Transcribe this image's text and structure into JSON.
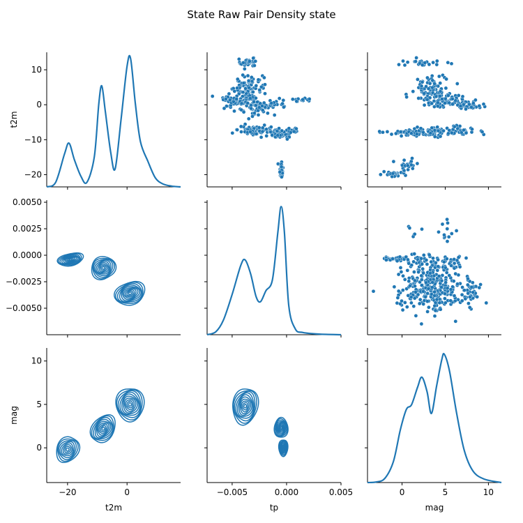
{
  "chart_data": {
    "type": "pairplot",
    "title": "State Raw Pair Density state",
    "variables": [
      "t2m",
      "tp",
      "mag"
    ],
    "diag": "kde",
    "upper": "scatter",
    "lower": "kde_contour",
    "color": "#1f77b4",
    "axes": {
      "t2m": {
        "range": [
          -27,
          18
        ],
        "ticks": [
          -20,
          0
        ],
        "row_range": [
          -23.5,
          15
        ],
        "row_ticks": [
          -20,
          -10,
          0,
          10
        ]
      },
      "tp": {
        "range": [
          -0.0073,
          0.005
        ],
        "ticks": [
          -0.005,
          0.0,
          0.005
        ],
        "tick_labels": [
          "−0.005",
          "0.000",
          "0.005"
        ],
        "row_range": [
          -0.0075,
          0.0052
        ],
        "row_ticks": [
          -0.005,
          -0.0025,
          0.0,
          0.0025,
          0.005
        ],
        "row_tick_labels": [
          "−0.0050",
          "−0.0025",
          "0.0000",
          "0.0025",
          "0.0050"
        ]
      },
      "mag": {
        "range": [
          -4,
          11.5
        ],
        "ticks": [
          0,
          5,
          10
        ],
        "row_range": [
          -4,
          11.5
        ],
        "row_ticks": [
          0,
          5,
          10
        ]
      }
    },
    "diag_kde": {
      "t2m": [
        {
          "x": -27.0,
          "d": 0.0
        },
        {
          "x": -24.0,
          "d": 0.003
        },
        {
          "x": -21.0,
          "d": 0.022
        },
        {
          "x": -19.5,
          "d": 0.029
        },
        {
          "x": -17.7,
          "d": 0.018
        },
        {
          "x": -15.5,
          "d": 0.007
        },
        {
          "x": -13.5,
          "d": 0.003
        },
        {
          "x": -11.0,
          "d": 0.02
        },
        {
          "x": -9.5,
          "d": 0.055
        },
        {
          "x": -8.5,
          "d": 0.067
        },
        {
          "x": -7.3,
          "d": 0.05
        },
        {
          "x": -5.5,
          "d": 0.023
        },
        {
          "x": -4.0,
          "d": 0.012
        },
        {
          "x": -2.0,
          "d": 0.045
        },
        {
          "x": 0.0,
          "d": 0.08
        },
        {
          "x": 1.2,
          "d": 0.085
        },
        {
          "x": 2.8,
          "d": 0.055
        },
        {
          "x": 4.5,
          "d": 0.03
        },
        {
          "x": 7.0,
          "d": 0.017
        },
        {
          "x": 9.5,
          "d": 0.006
        },
        {
          "x": 12.0,
          "d": 0.002
        },
        {
          "x": 15.0,
          "d": 0.0005
        },
        {
          "x": 18.0,
          "d": 0.0
        }
      ],
      "tp": [
        {
          "x": -0.0073,
          "d": 0.0
        },
        {
          "x": -0.0065,
          "d": 0.004
        },
        {
          "x": -0.0058,
          "d": 0.02
        },
        {
          "x": -0.005,
          "d": 0.055
        },
        {
          "x": -0.0042,
          "d": 0.095
        },
        {
          "x": -0.0038,
          "d": 0.102
        },
        {
          "x": -0.0033,
          "d": 0.083
        },
        {
          "x": -0.0028,
          "d": 0.052
        },
        {
          "x": -0.0024,
          "d": 0.045
        },
        {
          "x": -0.0019,
          "d": 0.06
        },
        {
          "x": -0.0013,
          "d": 0.075
        },
        {
          "x": -0.0008,
          "d": 0.14
        },
        {
          "x": -0.0005,
          "d": 0.175
        },
        {
          "x": -0.0002,
          "d": 0.14
        },
        {
          "x": 0.0002,
          "d": 0.04
        },
        {
          "x": 0.0008,
          "d": 0.008
        },
        {
          "x": 0.0015,
          "d": 0.003
        },
        {
          "x": 0.003,
          "d": 0.0008
        },
        {
          "x": 0.005,
          "d": 0.0
        }
      ],
      "mag": [
        {
          "x": -4.0,
          "d": 0.0
        },
        {
          "x": -3.0,
          "d": 0.001
        },
        {
          "x": -2.0,
          "d": 0.007
        },
        {
          "x": -1.0,
          "d": 0.036
        },
        {
          "x": -0.2,
          "d": 0.09
        },
        {
          "x": 0.5,
          "d": 0.125
        },
        {
          "x": 1.1,
          "d": 0.133
        },
        {
          "x": 1.8,
          "d": 0.163
        },
        {
          "x": 2.3,
          "d": 0.18
        },
        {
          "x": 2.9,
          "d": 0.155
        },
        {
          "x": 3.4,
          "d": 0.118
        },
        {
          "x": 4.0,
          "d": 0.165
        },
        {
          "x": 4.6,
          "d": 0.21
        },
        {
          "x": 4.9,
          "d": 0.219
        },
        {
          "x": 5.5,
          "d": 0.19
        },
        {
          "x": 6.3,
          "d": 0.12
        },
        {
          "x": 7.2,
          "d": 0.055
        },
        {
          "x": 8.2,
          "d": 0.02
        },
        {
          "x": 9.5,
          "d": 0.006
        },
        {
          "x": 11.5,
          "d": 0.0
        }
      ]
    },
    "scatter_clusters": {
      "tp_vs_t2m": [
        {
          "cx": -0.0035,
          "cy": 12.2,
          "sx": 0.0005,
          "sy": 0.6,
          "n": 25
        },
        {
          "cx": -0.0035,
          "cy": 4.5,
          "sx": 0.0007,
          "sy": 2.0,
          "n": 90
        },
        {
          "cx": -0.0048,
          "cy": 1.0,
          "sx": 0.0009,
          "sy": 0.9,
          "n": 50
        },
        {
          "cx": -0.0027,
          "cy": -0.5,
          "sx": 0.0008,
          "sy": 1.2,
          "n": 60
        },
        {
          "cx": -0.001,
          "cy": 0.2,
          "sx": 0.0006,
          "sy": 0.7,
          "n": 20
        },
        {
          "cx": 0.0015,
          "cy": 1.3,
          "sx": 0.0006,
          "sy": 0.3,
          "n": 12
        },
        {
          "cx": -0.003,
          "cy": -7.2,
          "sx": 0.0008,
          "sy": 0.7,
          "n": 60
        },
        {
          "cx": -0.0008,
          "cy": -8.2,
          "sx": 0.0006,
          "sy": 0.8,
          "n": 55
        },
        {
          "cx": 0.0005,
          "cy": -7.3,
          "sx": 0.0005,
          "sy": 0.4,
          "n": 15
        },
        {
          "cx": -0.0035,
          "cy": -7.8,
          "sx": 0.0004,
          "sy": 0.3,
          "n": 12
        },
        {
          "cx": -0.0005,
          "cy": -18.5,
          "sx": 8e-05,
          "sy": 1.5,
          "n": 35
        }
      ],
      "mag_vs_t2m": [
        {
          "cx": 2.5,
          "cy": 12.0,
          "sx": 1.6,
          "sy": 0.5,
          "n": 25
        },
        {
          "cx": 3.5,
          "cy": 4.5,
          "sx": 1.2,
          "sy": 1.8,
          "n": 80
        },
        {
          "cx": 5.5,
          "cy": 1.0,
          "sx": 1.4,
          "sy": 0.8,
          "n": 70
        },
        {
          "cx": 7.8,
          "cy": -0.4,
          "sx": 0.9,
          "sy": 0.4,
          "n": 30
        },
        {
          "cx": 0.8,
          "cy": -8.0,
          "sx": 1.5,
          "sy": 0.4,
          "n": 45
        },
        {
          "cx": 5.0,
          "cy": -7.6,
          "sx": 2.0,
          "sy": 0.8,
          "n": 80
        },
        {
          "cx": -0.8,
          "cy": -19.8,
          "sx": 0.7,
          "sy": 0.5,
          "n": 25
        },
        {
          "cx": 0.5,
          "cy": -17.0,
          "sx": 0.5,
          "sy": 1.3,
          "n": 20
        }
      ],
      "mag_vs_tp": [
        {
          "cx": -0.8,
          "cy": -0.00035,
          "sx": 0.7,
          "sy": 0.00012,
          "n": 25
        },
        {
          "cx": 1.8,
          "cy": -0.0005,
          "sx": 0.9,
          "sy": 0.0004,
          "n": 30
        },
        {
          "cx": 4.5,
          "cy": -0.0007,
          "sx": 1.2,
          "sy": 0.0004,
          "n": 30
        },
        {
          "cx": 3.5,
          "cy": -0.003,
          "sx": 1.8,
          "sy": 0.0012,
          "n": 300
        },
        {
          "cx": 8.0,
          "cy": -0.0035,
          "sx": 0.8,
          "sy": 0.0006,
          "n": 30
        },
        {
          "cx": 4.7,
          "cy": 0.0022,
          "sx": 0.6,
          "sy": 0.0008,
          "n": 12
        },
        {
          "cx": 1.5,
          "cy": 0.0018,
          "sx": 0.4,
          "sy": 0.0004,
          "n": 6
        }
      ]
    },
    "contour_modes": {
      "t2m_vs_tp": [
        {
          "cx": -19,
          "cy": -0.0004,
          "sx": 4.2,
          "sy": 0.0006,
          "w": 0.8,
          "rot": -12
        },
        {
          "cx": -8,
          "cy": -0.0012,
          "sx": 4.0,
          "sy": 0.0011,
          "w": 0.9,
          "rot": -30
        },
        {
          "cx": 1,
          "cy": -0.0036,
          "sx": 5.0,
          "sy": 0.0011,
          "w": 1.0,
          "rot": -20
        }
      ],
      "t2m_vs_mag": [
        {
          "cx": -20,
          "cy": -0.2,
          "sx": 3.5,
          "sy": 1.6,
          "w": 0.7,
          "rot": 30
        },
        {
          "cx": -8,
          "cy": 2.2,
          "sx": 3.5,
          "sy": 1.8,
          "w": 0.9,
          "rot": 35
        },
        {
          "cx": 1,
          "cy": 5.0,
          "sx": 4.5,
          "sy": 2.0,
          "w": 1.0,
          "rot": 0
        }
      ],
      "tp_vs_mag": [
        {
          "cx": -0.0038,
          "cy": 4.8,
          "sx": 0.0011,
          "sy": 2.2,
          "w": 1.0,
          "rot": 10
        },
        {
          "cx": -0.0005,
          "cy": 2.3,
          "sx": 0.0006,
          "sy": 1.2,
          "w": 0.9,
          "rot": 0
        },
        {
          "cx": -0.0003,
          "cy": 0.0,
          "sx": 0.0004,
          "sy": 1.0,
          "w": 0.8,
          "rot": 0
        }
      ]
    }
  }
}
